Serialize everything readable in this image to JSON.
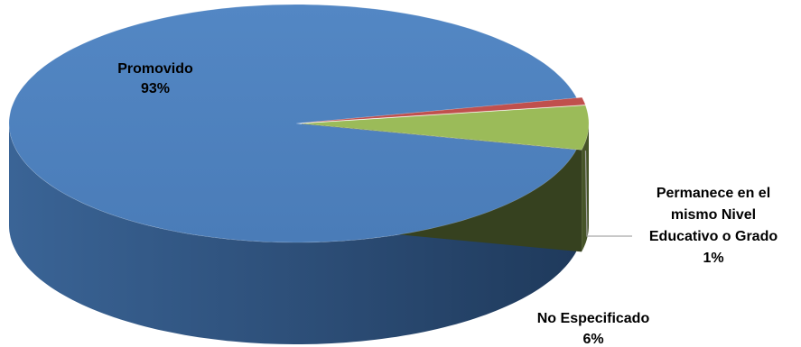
{
  "chart_data": {
    "type": "pie",
    "style": "3d-exploded-tilted",
    "slices": [
      {
        "name": "Promovido",
        "percent": "93%",
        "value": 93,
        "color": "#4f81bd"
      },
      {
        "name": "Permanece en el mismo Nivel Educativo o Grado",
        "label_lines": [
          "Permanece en el",
          "mismo Nivel",
          "Educativo o Grado"
        ],
        "percent": "1%",
        "value": 1,
        "color": "#c0504d"
      },
      {
        "name": "No Especificado",
        "percent": "6%",
        "value": 6,
        "color": "#9bbb59"
      }
    ],
    "legend": "none",
    "data_labels": "category-and-percent"
  }
}
